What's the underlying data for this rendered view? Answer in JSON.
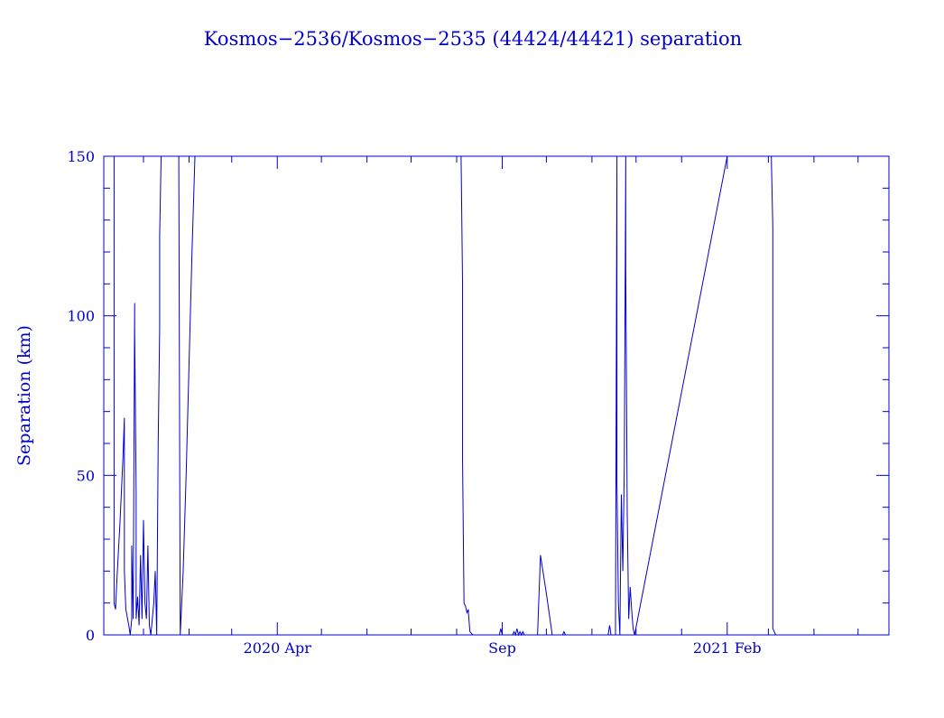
{
  "chart_data": {
    "type": "line",
    "title": "Kosmos−2536/Kosmos−2535 (44424/44421) separation",
    "xlabel": "",
    "ylabel": "Separation (km)",
    "x_unit": "date",
    "xlim": [
      "2019-12-05",
      "2021-05-22"
    ],
    "ylim": [
      0,
      150
    ],
    "y_ticks": [
      0,
      50,
      100,
      150
    ],
    "x_tick_labels": [
      {
        "date": "2020-04-01",
        "label": "2020 Apr"
      },
      {
        "date": "2020-09-01",
        "label": "Sep"
      },
      {
        "date": "2021-02-01",
        "label": "2021 Feb"
      }
    ],
    "grid": false,
    "color": "#0000cc",
    "series": [
      {
        "name": "",
        "points": [
          [
            "2019-12-12",
            150
          ],
          [
            "2019-12-12",
            10
          ],
          [
            "2019-12-13",
            8
          ],
          [
            "2019-12-14",
            18
          ],
          [
            "2019-12-16",
            35
          ],
          [
            "2019-12-18",
            55
          ],
          [
            "2019-12-19",
            68
          ],
          [
            "2019-12-19",
            20
          ],
          [
            "2019-12-20",
            8
          ],
          [
            "2019-12-22",
            3
          ],
          [
            "2019-12-23",
            0
          ],
          [
            "2019-12-24",
            5
          ],
          [
            "2019-12-24",
            28
          ],
          [
            "2019-12-25",
            5
          ],
          [
            "2019-12-26",
            104
          ],
          [
            "2019-12-26",
            96
          ],
          [
            "2019-12-27",
            45
          ],
          [
            "2019-12-27",
            5
          ],
          [
            "2019-12-28",
            12
          ],
          [
            "2019-12-29",
            3
          ],
          [
            "2019-12-30",
            25
          ],
          [
            "2019-12-31",
            5
          ],
          [
            "2020-01-01",
            36
          ],
          [
            "2020-01-02",
            10
          ],
          [
            "2020-01-03",
            5
          ],
          [
            "2020-01-04",
            28
          ],
          [
            "2020-01-05",
            3
          ],
          [
            "2020-01-06",
            0
          ],
          [
            "2020-01-08",
            10
          ],
          [
            "2020-01-09",
            20
          ],
          [
            "2020-01-10",
            0
          ],
          [
            "2020-01-11",
            60
          ],
          [
            "2020-01-12",
            96
          ],
          [
            "2020-01-12",
            125
          ],
          [
            "2020-01-13",
            150
          ],
          [
            "2020-01-25",
            150
          ],
          [
            "2020-01-26",
            0
          ],
          [
            "2020-01-28",
            20
          ],
          [
            "2020-01-30",
            50
          ],
          [
            "2020-02-01",
            85
          ],
          [
            "2020-02-03",
            120
          ],
          [
            "2020-02-05",
            150
          ],
          [
            "2020-08-04",
            150
          ],
          [
            "2020-08-05",
            110
          ],
          [
            "2020-08-05",
            55
          ],
          [
            "2020-08-06",
            10
          ],
          [
            "2020-08-07",
            9
          ],
          [
            "2020-08-08",
            7
          ],
          [
            "2020-08-09",
            8
          ],
          [
            "2020-08-09",
            7
          ],
          [
            "2020-08-10",
            1
          ],
          [
            "2020-08-12",
            0
          ],
          [
            "2020-08-30",
            0
          ],
          [
            "2020-08-31",
            2
          ],
          [
            "2020-09-01",
            0
          ],
          [
            "2020-09-08",
            0
          ],
          [
            "2020-09-09",
            1
          ],
          [
            "2020-09-10",
            0
          ],
          [
            "2020-09-11",
            2
          ],
          [
            "2020-09-12",
            0
          ],
          [
            "2020-09-13",
            1
          ],
          [
            "2020-09-14",
            0
          ],
          [
            "2020-09-15",
            1
          ],
          [
            "2020-09-16",
            0
          ],
          [
            "2020-09-25",
            0
          ],
          [
            "2020-09-27",
            25
          ],
          [
            "2020-10-01",
            13
          ],
          [
            "2020-10-05",
            0
          ],
          [
            "2020-10-12",
            0
          ],
          [
            "2020-10-13",
            1
          ],
          [
            "2020-10-14",
            0
          ],
          [
            "2020-11-12",
            0
          ],
          [
            "2020-11-13",
            3
          ],
          [
            "2020-11-14",
            0
          ],
          [
            "2020-11-17",
            0
          ],
          [
            "2020-11-18",
            150
          ],
          [
            "2020-11-18",
            48
          ],
          [
            "2020-11-19",
            10
          ],
          [
            "2020-11-20",
            0
          ],
          [
            "2020-11-21",
            44
          ],
          [
            "2020-11-22",
            20
          ],
          [
            "2020-11-23",
            52
          ],
          [
            "2020-11-24",
            150
          ],
          [
            "2020-11-24",
            115
          ],
          [
            "2020-11-25",
            38
          ],
          [
            "2020-11-26",
            5
          ],
          [
            "2020-11-27",
            15
          ],
          [
            "2020-11-28",
            8
          ],
          [
            "2020-11-29",
            2
          ],
          [
            "2020-11-30",
            0
          ],
          [
            "2021-02-01",
            150
          ],
          [
            "2021-03-03",
            150
          ],
          [
            "2021-03-04",
            128
          ],
          [
            "2021-03-04",
            2
          ],
          [
            "2021-03-06",
            0
          ]
        ]
      }
    ]
  }
}
